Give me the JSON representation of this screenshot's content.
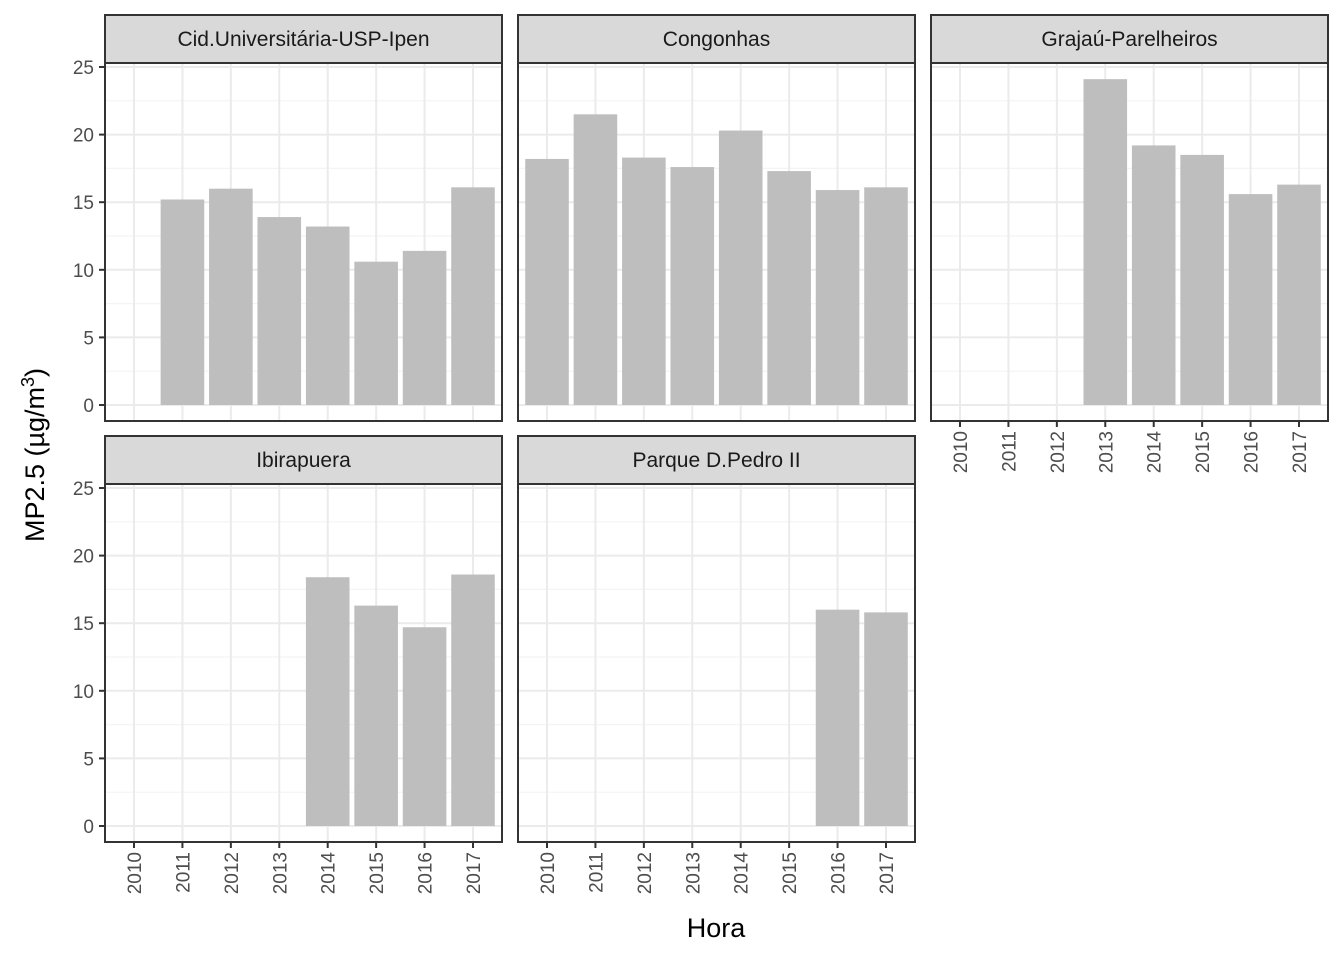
{
  "chart_data": {
    "type": "bar",
    "xlabel": "Hora",
    "ylabel": "MP2.5 (µg/m",
    "ylabel_superscript": "3",
    "ylabel_close": ")",
    "ylim": [
      0,
      25
    ],
    "yticks": [
      "0",
      "5",
      "10",
      "15",
      "20",
      "25"
    ],
    "categories": [
      "2010",
      "2011",
      "2012",
      "2013",
      "2014",
      "2015",
      "2016",
      "2017"
    ],
    "grid": true,
    "bar_color": "#bebebe",
    "strip_color": "#d9d9d9",
    "panels": [
      {
        "name": "Cid.Universitária-USP-Ipen",
        "values": [
          null,
          15.2,
          16.0,
          13.9,
          13.2,
          10.6,
          11.4,
          16.1
        ]
      },
      {
        "name": "Congonhas",
        "values": [
          18.2,
          21.5,
          18.3,
          17.6,
          20.3,
          17.3,
          15.9,
          16.1
        ]
      },
      {
        "name": "Grajaú-Parelheiros",
        "values": [
          null,
          null,
          null,
          24.1,
          19.2,
          18.5,
          15.6,
          16.3
        ]
      },
      {
        "name": "Ibirapuera",
        "values": [
          null,
          null,
          null,
          null,
          18.4,
          16.3,
          14.7,
          18.6
        ]
      },
      {
        "name": "Parque D.Pedro II",
        "values": [
          null,
          null,
          null,
          null,
          null,
          null,
          16.0,
          15.8
        ]
      }
    ]
  }
}
